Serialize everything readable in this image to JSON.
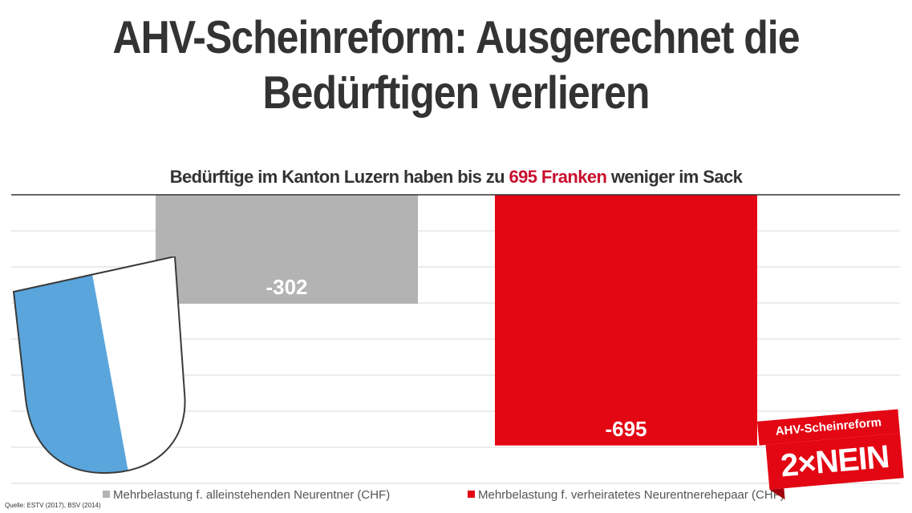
{
  "header": {
    "title_line1": "AHV-Scheinreform: Ausgerechnet die",
    "title_line2": "Bedürftigen verlieren"
  },
  "subtitle": {
    "before": "Bedürftige im Kanton Luzern haben bis zu ",
    "highlight": "695 Franken",
    "after": " weniger im Sack"
  },
  "chart_data": {
    "type": "bar",
    "categories": [
      ""
    ],
    "series": [
      {
        "name": "Mehrbelastung f. alleinstehenden Neurentner (CHF)",
        "values": [
          -302
        ],
        "label": "-302",
        "color": "#b3b3b3"
      },
      {
        "name": "Mehrbelastung f. verheiratetes Neurentnerehepaar (CHF)",
        "values": [
          -695
        ],
        "label": "-695",
        "color": "#e30613"
      }
    ],
    "ylim": [
      -800,
      0
    ],
    "grid": true,
    "legend": "bottom"
  },
  "source": "Quelle: ESTV (2017), BSV (2014)",
  "badge": {
    "top_text": "AHV-Scheinreform",
    "main_text": "2×NEIN"
  },
  "colors": {
    "crest_blue": "#5aa5dc",
    "accent_red": "#e30613"
  },
  "icons": {
    "crest": "luzern-coat-of-arms-icon"
  }
}
